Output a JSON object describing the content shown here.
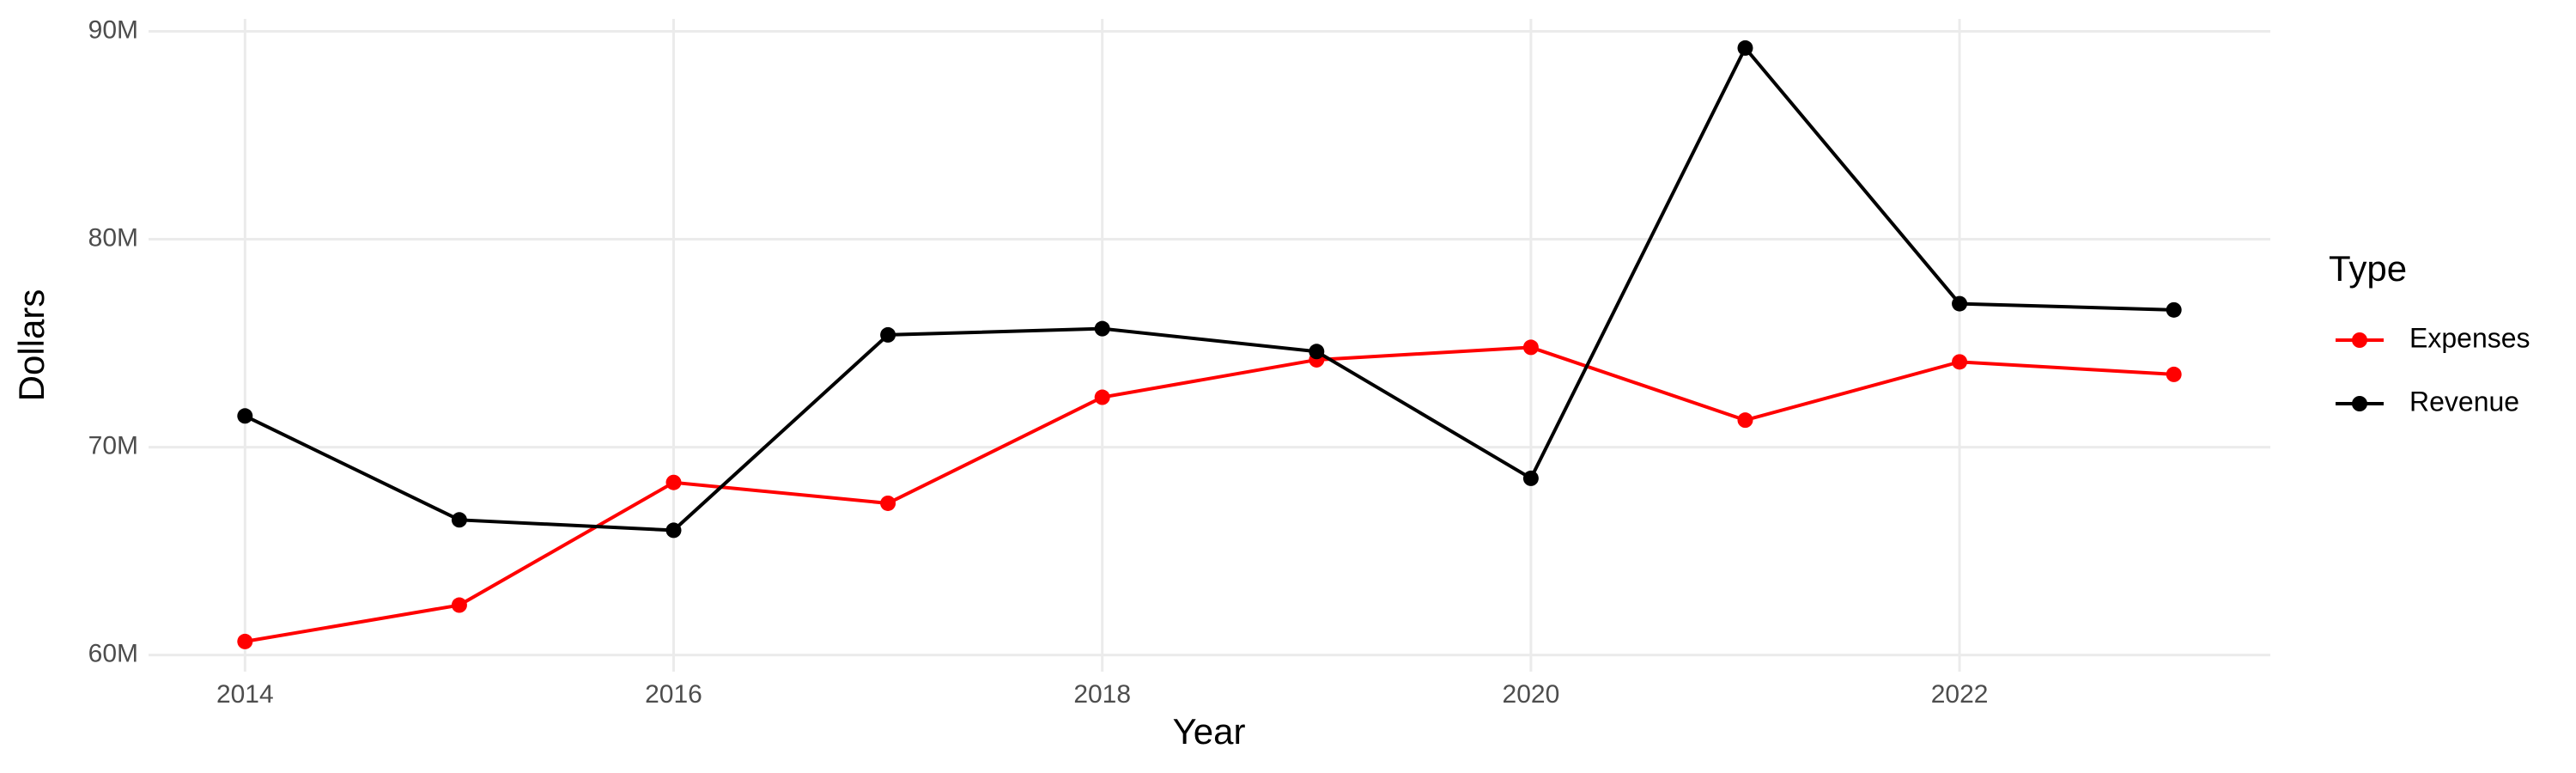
{
  "chart_data": {
    "type": "line",
    "x_label": "Year",
    "y_label": "Dollars",
    "legend_title": "Type",
    "legend": "right",
    "grid": true,
    "x": [
      2014,
      2015,
      2016,
      2017,
      2018,
      2019,
      2020,
      2021,
      2022,
      2023
    ],
    "series": [
      {
        "name": "Expenses",
        "color": "#ff0000",
        "values": [
          60650000,
          62400000,
          68300000,
          67300000,
          72400000,
          74200000,
          74800000,
          71300000,
          74100000,
          73500000
        ]
      },
      {
        "name": "Revenue",
        "color": "#000000",
        "values": [
          71500000,
          66500000,
          66000000,
          75400000,
          75700000,
          74600000,
          68500000,
          89200000,
          76900000,
          76600000
        ]
      }
    ],
    "xlim": [
      2013.55,
      2023.45
    ],
    "xticks": [
      2014,
      2016,
      2018,
      2020,
      2022
    ],
    "ylim": [
      59200000,
      90600000
    ],
    "yticks": [
      {
        "value": 60000000,
        "label": "60M"
      },
      {
        "value": 70000000,
        "label": "70M"
      },
      {
        "value": 80000000,
        "label": "80M"
      },
      {
        "value": 90000000,
        "label": "90M"
      }
    ]
  }
}
